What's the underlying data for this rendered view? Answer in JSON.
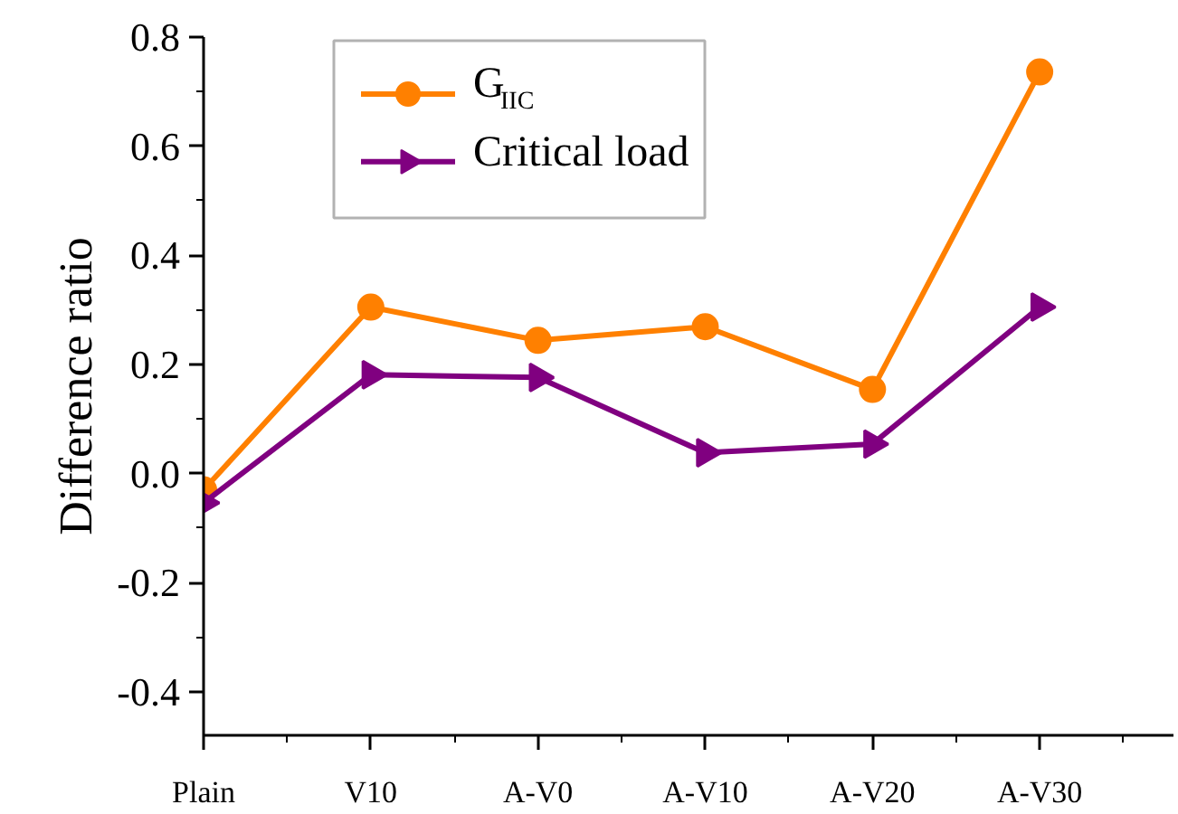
{
  "chart_data": {
    "type": "line",
    "ylabel": "Difference ratio",
    "categories": [
      "Plain",
      "V10",
      "A-V0",
      "A-V10",
      "A-V20",
      "A-V30"
    ],
    "series": [
      {
        "name": "G$_{IIC}$",
        "color": "#ff8000",
        "marker": "circle",
        "values": [
          -0.03,
          0.305,
          0.244,
          0.269,
          0.154,
          0.736
        ]
      },
      {
        "name": "Critical load",
        "color": "#800080",
        "marker": "triangle",
        "values": [
          -0.054,
          0.181,
          0.176,
          0.038,
          0.054,
          0.305
        ]
      }
    ],
    "ylim": [
      -0.48,
      0.8
    ],
    "yticks": [
      -0.4,
      -0.2,
      {
        "value": 0,
        "label": "0.0"
      },
      0.2,
      0.4,
      0.6,
      0.8
    ],
    "grid": false,
    "legend": "top left",
    "line_style": "solid"
  }
}
